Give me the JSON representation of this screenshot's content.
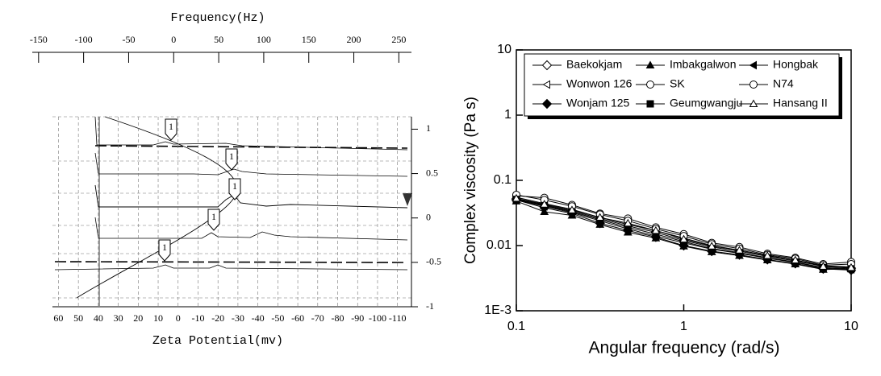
{
  "chart_data": [
    {
      "type": "spectrum",
      "top_xlabel": "Frequency(Hz)",
      "top_xlim": [
        -157,
        264
      ],
      "top_xticks": [
        -150,
        -100,
        -50,
        0,
        50,
        100,
        150,
        200,
        250
      ],
      "xlabel": "Zeta Potential(mv)",
      "xlim": [
        63,
        -117
      ],
      "xticks": [
        60,
        50,
        40,
        30,
        20,
        10,
        0,
        -10,
        -20,
        -30,
        -40,
        -50,
        -60,
        -70,
        -80,
        -90,
        -100,
        -110
      ],
      "ylim": [
        -1,
        1.14
      ],
      "yticks": [
        1,
        0.5,
        0,
        -0.5,
        -1
      ],
      "annotations": [
        "1",
        "1",
        "1",
        "1",
        "1"
      ]
    },
    {
      "type": "line",
      "xlabel": "Angular frequency (rad/s)",
      "ylabel": "Complex viscosity (Pa s)",
      "log_x": true,
      "log_y": true,
      "xlim": [
        0.1,
        10
      ],
      "ylim": [
        0.001,
        10
      ],
      "xticks": [
        0.1,
        1,
        10
      ],
      "yticks": [
        {
          "value": 0.001,
          "label": "1E-3"
        },
        0.01,
        0.1,
        1,
        10
      ],
      "x": [
        0.1,
        0.147,
        0.215,
        0.316,
        0.464,
        0.681,
        1,
        1.47,
        2.15,
        3.16,
        4.64,
        6.81,
        10
      ],
      "series": [
        {
          "name": "Baekokjam",
          "color": "#000000",
          "marker": "diamond",
          "filled": false,
          "values": [
            0.052,
            0.042,
            0.034,
            0.026,
            0.02,
            0.016,
            0.012,
            0.0095,
            0.0082,
            0.0068,
            0.0058,
            0.0048,
            0.0045
          ]
        },
        {
          "name": "Imbakgalwon",
          "color": "#000000",
          "marker": "triangle",
          "filled": true,
          "values": [
            0.048,
            0.033,
            0.029,
            0.021,
            0.016,
            0.013,
            0.0098,
            0.008,
            0.007,
            0.006,
            0.0052,
            0.0043,
            0.0044
          ]
        },
        {
          "name": "Hongbak",
          "color": "#000000",
          "marker": "left-triangle",
          "filled": true,
          "values": [
            0.05,
            0.04,
            0.032,
            0.024,
            0.018,
            0.014,
            0.011,
            0.0088,
            0.0076,
            0.0064,
            0.0055,
            0.0045,
            0.0043
          ]
        },
        {
          "name": "Wonwon 126",
          "color": "#000000",
          "marker": "left-triangle",
          "filled": false,
          "values": [
            0.055,
            0.044,
            0.036,
            0.027,
            0.021,
            0.017,
            0.013,
            0.01,
            0.0085,
            0.007,
            0.006,
            0.0049,
            0.0047
          ]
        },
        {
          "name": "SK",
          "color": "#000000",
          "marker": "circle",
          "filled": false,
          "values": [
            0.058,
            0.054,
            0.042,
            0.031,
            0.026,
            0.019,
            0.015,
            0.011,
            0.0095,
            0.0075,
            0.0065,
            0.0052,
            0.0056
          ]
        },
        {
          "name": "N74",
          "color": "#000000",
          "marker": "circle",
          "filled": false,
          "values": [
            0.06,
            0.05,
            0.04,
            0.03,
            0.024,
            0.018,
            0.014,
            0.0105,
            0.009,
            0.0072,
            0.0063,
            0.005,
            0.0052
          ]
        },
        {
          "name": "Wonjam 125",
          "color": "#000000",
          "marker": "diamond",
          "filled": true,
          "values": [
            0.05,
            0.038,
            0.031,
            0.022,
            0.017,
            0.0135,
            0.01,
            0.0082,
            0.0072,
            0.0061,
            0.0053,
            0.0044,
            0.0042
          ]
        },
        {
          "name": "Geumgwangju",
          "color": "#000000",
          "marker": "square",
          "filled": true,
          "values": [
            0.051,
            0.041,
            0.033,
            0.025,
            0.019,
            0.015,
            0.0115,
            0.009,
            0.0078,
            0.0065,
            0.0056,
            0.0046,
            0.0044
          ]
        },
        {
          "name": "Hansang II",
          "color": "#000000",
          "marker": "triangle",
          "filled": false,
          "values": [
            0.053,
            0.043,
            0.035,
            0.027,
            0.022,
            0.017,
            0.0125,
            0.0098,
            0.0085,
            0.007,
            0.006,
            0.0048,
            0.0046
          ]
        }
      ]
    }
  ]
}
